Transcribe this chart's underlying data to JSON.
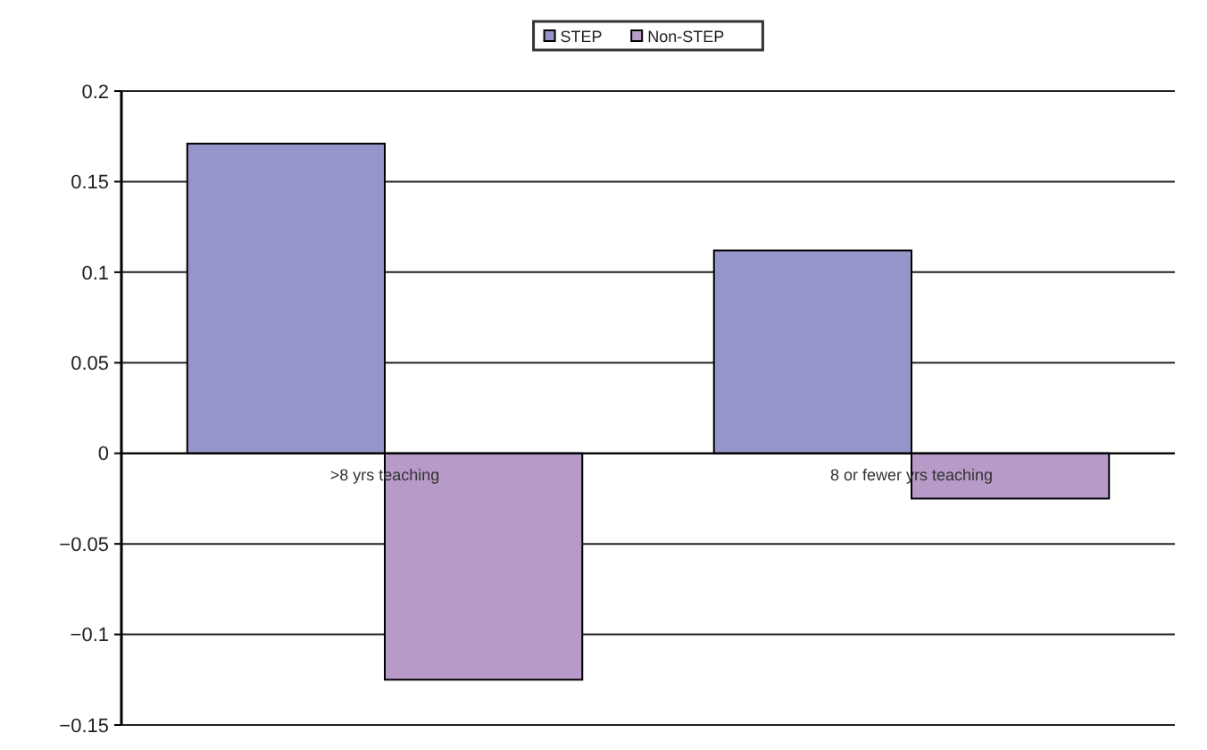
{
  "chart_data": {
    "type": "bar",
    "categories": [
      ">8 yrs teaching",
      "8 or fewer yrs teaching"
    ],
    "series": [
      {
        "name": "STEP",
        "color": "#9595ca",
        "values": [
          0.171,
          0.112
        ]
      },
      {
        "name": "Non-STEP",
        "color": "#b89ac8",
        "values": [
          -0.125,
          -0.025
        ]
      }
    ],
    "ylim": [
      -0.15,
      0.2
    ],
    "yticks": [
      -0.15,
      -0.1,
      -0.05,
      0,
      0.05,
      0.1,
      0.15,
      0.2
    ],
    "grid": "y",
    "legend": "top"
  }
}
